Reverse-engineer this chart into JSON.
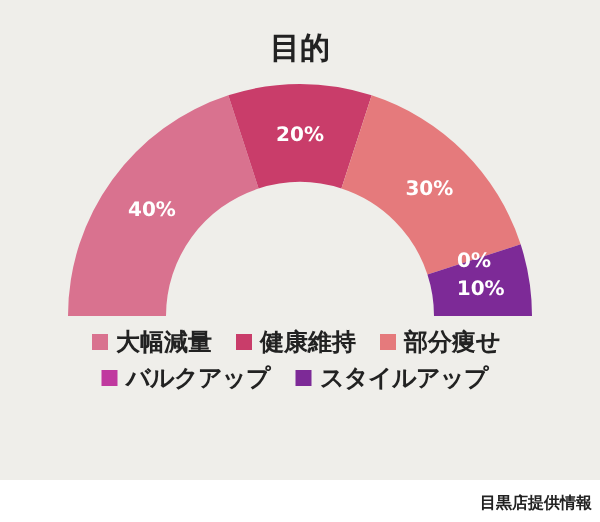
{
  "chart_data": {
    "type": "donut",
    "title": "目的",
    "categories": [
      "大幅減量",
      "健康維持",
      "部分痩せ",
      "バルクアップ",
      "スタイルアップ"
    ],
    "values": [
      40,
      20,
      30,
      0,
      10
    ],
    "colors": [
      "#d9728f",
      "#c93d6a",
      "#e57a7c",
      "#c0399f",
      "#7d2a97"
    ],
    "value_labels": [
      "40%",
      "20%",
      "30%",
      "0%",
      "10%"
    ],
    "legend": "bottom",
    "annotations": [
      "目黒店提供情報"
    ]
  }
}
